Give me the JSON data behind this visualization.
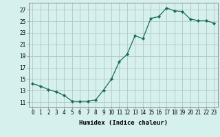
{
  "x": [
    0,
    1,
    2,
    3,
    4,
    5,
    6,
    7,
    8,
    9,
    10,
    11,
    12,
    13,
    14,
    15,
    16,
    17,
    18,
    19,
    20,
    21,
    22,
    23
  ],
  "y": [
    14.2,
    13.8,
    13.2,
    12.8,
    12.2,
    11.2,
    11.1,
    11.2,
    11.4,
    13.1,
    15.0,
    18.0,
    19.3,
    22.5,
    22.0,
    25.5,
    25.8,
    27.3,
    26.8,
    26.7,
    25.4,
    25.1,
    25.1,
    24.7
  ],
  "line_color": "#1a6b5a",
  "marker": "D",
  "marker_size": 2.2,
  "bg_color": "#d6f0ee",
  "grid_color": "#b0c8c4",
  "xlabel": "Humidex (Indice chaleur)",
  "ylabel": "",
  "yticks": [
    11,
    13,
    15,
    17,
    19,
    21,
    23,
    25,
    27
  ],
  "xticks": [
    0,
    1,
    2,
    3,
    4,
    5,
    6,
    7,
    8,
    9,
    10,
    11,
    12,
    13,
    14,
    15,
    16,
    17,
    18,
    19,
    20,
    21,
    22,
    23
  ],
  "ylim": [
    10.2,
    28.2
  ],
  "xlim": [
    -0.5,
    23.5
  ],
  "label_fontsize": 6.5,
  "tick_fontsize": 5.5
}
